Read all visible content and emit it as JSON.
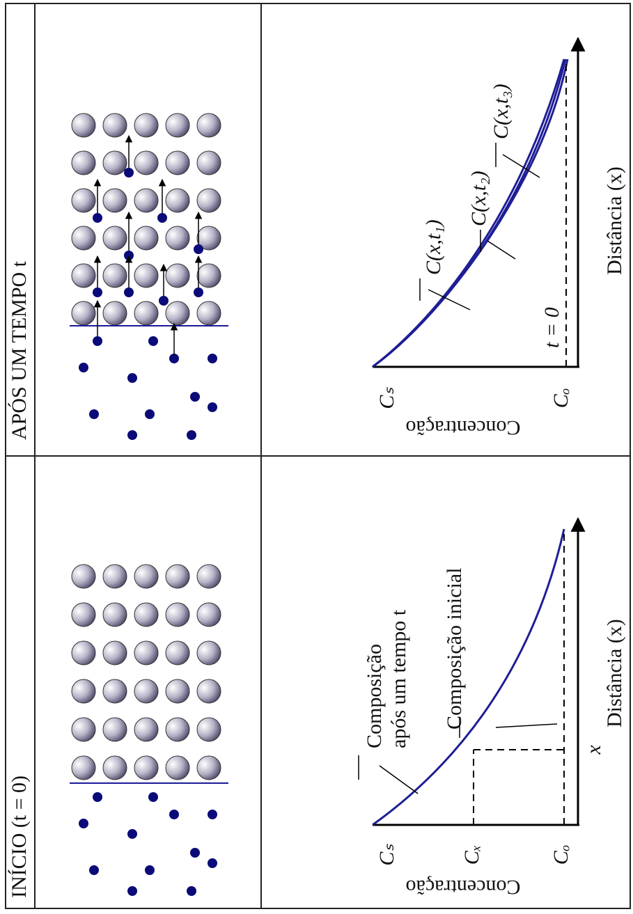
{
  "header": {
    "left": "INÍCIO (t = 0)",
    "right": "APÓS UM TEMPO t"
  },
  "left_graph": {
    "y_axis": "Concentração",
    "x_axis": "Distância (x)",
    "y_ticks": [
      "Cₛ",
      "Cₓ",
      "Cₒ"
    ],
    "x_marker": "x",
    "annotations": [
      "Composição",
      "após um tempo t",
      "Composição inicial"
    ]
  },
  "right_graph": {
    "y_axis": "Concentração",
    "x_axis": "Distância (x)",
    "y_ticks": [
      "Cₛ",
      "Cₒ"
    ],
    "curves": [
      "C(x,t₁)",
      "C(x,t₂)",
      "C(x,t₃)"
    ],
    "initial": "t = 0"
  }
}
